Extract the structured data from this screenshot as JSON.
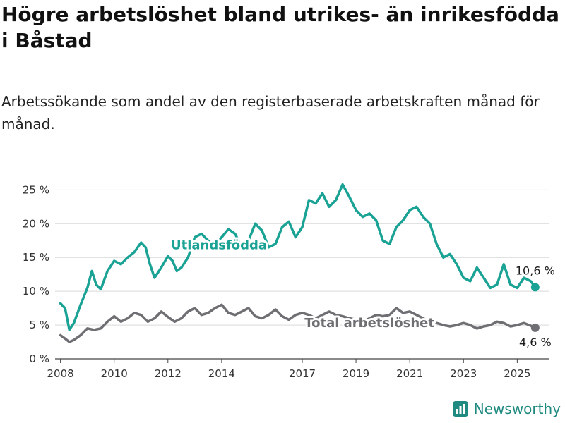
{
  "header": {
    "title": "Högre arbetslöshet bland utrikes- än inrikesfödda i Båstad",
    "subtitle": "Arbetssökande som andel av den registerbaserade arbetskraften månad för månad."
  },
  "branding": {
    "name": "Newsworthy",
    "icon": "bar-chart-logo-icon",
    "color": "#1f8a80"
  },
  "chart_data": {
    "type": "line",
    "title": "Högre arbetslöshet bland utrikes- än inrikesfödda i Båstad",
    "subtitle": "Arbetssökande som andel av den registerbaserade arbetskraften månad för månad.",
    "xlabel": "",
    "ylabel": "",
    "x_ticks": [
      "2008",
      "2010",
      "2012",
      "2014",
      "2017",
      "2019",
      "2021",
      "2023",
      "2025"
    ],
    "y_ticks": [
      "0 %",
      "5 %",
      "10 %",
      "15 %",
      "20 %",
      "25 %"
    ],
    "xlim": [
      2007.8,
      2026.2
    ],
    "ylim": [
      0,
      26.5
    ],
    "grid": "horizontal",
    "series": [
      {
        "name": "Utlandsfödda",
        "color": "#1aa295",
        "end_label": "10,6 %",
        "points": [
          [
            2008.0,
            8.2
          ],
          [
            2008.17,
            7.5
          ],
          [
            2008.33,
            4.3
          ],
          [
            2008.5,
            5.3
          ],
          [
            2008.75,
            8.0
          ],
          [
            2009.0,
            10.5
          ],
          [
            2009.17,
            13.0
          ],
          [
            2009.33,
            11.0
          ],
          [
            2009.5,
            10.3
          ],
          [
            2009.75,
            13.0
          ],
          [
            2010.0,
            14.5
          ],
          [
            2010.25,
            14.0
          ],
          [
            2010.5,
            15.0
          ],
          [
            2010.75,
            15.8
          ],
          [
            2011.0,
            17.2
          ],
          [
            2011.17,
            16.5
          ],
          [
            2011.33,
            14.0
          ],
          [
            2011.5,
            12.0
          ],
          [
            2011.75,
            13.5
          ],
          [
            2012.0,
            15.2
          ],
          [
            2012.17,
            14.5
          ],
          [
            2012.33,
            13.0
          ],
          [
            2012.5,
            13.5
          ],
          [
            2012.75,
            15.0
          ],
          [
            2013.0,
            18.0
          ],
          [
            2013.25,
            18.5
          ],
          [
            2013.5,
            17.5
          ],
          [
            2013.75,
            17.0
          ],
          [
            2014.0,
            18.0
          ],
          [
            2014.25,
            19.2
          ],
          [
            2014.5,
            18.5
          ],
          [
            2014.75,
            16.5
          ],
          [
            2015.0,
            17.5
          ],
          [
            2015.25,
            20.0
          ],
          [
            2015.5,
            19.0
          ],
          [
            2015.75,
            16.5
          ],
          [
            2016.0,
            17.0
          ],
          [
            2016.25,
            19.5
          ],
          [
            2016.5,
            20.3
          ],
          [
            2016.75,
            18.0
          ],
          [
            2017.0,
            19.5
          ],
          [
            2017.25,
            23.5
          ],
          [
            2017.5,
            23.0
          ],
          [
            2017.75,
            24.5
          ],
          [
            2018.0,
            22.5
          ],
          [
            2018.25,
            23.5
          ],
          [
            2018.5,
            25.8
          ],
          [
            2018.75,
            24.0
          ],
          [
            2019.0,
            22.0
          ],
          [
            2019.25,
            21.0
          ],
          [
            2019.5,
            21.5
          ],
          [
            2019.75,
            20.5
          ],
          [
            2020.0,
            17.5
          ],
          [
            2020.25,
            17.0
          ],
          [
            2020.5,
            19.5
          ],
          [
            2020.75,
            20.5
          ],
          [
            2021.0,
            22.0
          ],
          [
            2021.25,
            22.5
          ],
          [
            2021.5,
            21.0
          ],
          [
            2021.75,
            20.0
          ],
          [
            2022.0,
            17.0
          ],
          [
            2022.25,
            15.0
          ],
          [
            2022.5,
            15.5
          ],
          [
            2022.75,
            14.0
          ],
          [
            2023.0,
            12.0
          ],
          [
            2023.25,
            11.5
          ],
          [
            2023.5,
            13.5
          ],
          [
            2023.75,
            12.0
          ],
          [
            2024.0,
            10.5
          ],
          [
            2024.25,
            11.0
          ],
          [
            2024.5,
            14.0
          ],
          [
            2024.75,
            11.0
          ],
          [
            2025.0,
            10.5
          ],
          [
            2025.25,
            12.0
          ],
          [
            2025.5,
            11.5
          ],
          [
            2025.67,
            10.6
          ]
        ]
      },
      {
        "name": "Total arbetslöshet",
        "color": "#6e6e73",
        "end_label": "4,6 %",
        "points": [
          [
            2008.0,
            3.5
          ],
          [
            2008.17,
            3.0
          ],
          [
            2008.33,
            2.5
          ],
          [
            2008.5,
            2.8
          ],
          [
            2008.75,
            3.5
          ],
          [
            2009.0,
            4.5
          ],
          [
            2009.25,
            4.3
          ],
          [
            2009.5,
            4.5
          ],
          [
            2009.75,
            5.5
          ],
          [
            2010.0,
            6.3
          ],
          [
            2010.25,
            5.5
          ],
          [
            2010.5,
            6.0
          ],
          [
            2010.75,
            6.8
          ],
          [
            2011.0,
            6.5
          ],
          [
            2011.25,
            5.5
          ],
          [
            2011.5,
            6.0
          ],
          [
            2011.75,
            7.0
          ],
          [
            2012.0,
            6.2
          ],
          [
            2012.25,
            5.5
          ],
          [
            2012.5,
            6.0
          ],
          [
            2012.75,
            7.0
          ],
          [
            2013.0,
            7.5
          ],
          [
            2013.25,
            6.5
          ],
          [
            2013.5,
            6.8
          ],
          [
            2013.75,
            7.5
          ],
          [
            2014.0,
            8.0
          ],
          [
            2014.25,
            6.8
          ],
          [
            2014.5,
            6.5
          ],
          [
            2014.75,
            7.0
          ],
          [
            2015.0,
            7.5
          ],
          [
            2015.25,
            6.3
          ],
          [
            2015.5,
            6.0
          ],
          [
            2015.75,
            6.5
          ],
          [
            2016.0,
            7.3
          ],
          [
            2016.25,
            6.3
          ],
          [
            2016.5,
            5.8
          ],
          [
            2016.75,
            6.5
          ],
          [
            2017.0,
            6.8
          ],
          [
            2017.25,
            6.5
          ],
          [
            2017.5,
            6.0
          ],
          [
            2017.75,
            6.5
          ],
          [
            2018.0,
            7.0
          ],
          [
            2018.25,
            6.5
          ],
          [
            2018.5,
            6.3
          ],
          [
            2018.75,
            6.0
          ],
          [
            2019.0,
            5.8
          ],
          [
            2019.25,
            5.5
          ],
          [
            2019.5,
            6.0
          ],
          [
            2019.75,
            6.5
          ],
          [
            2020.0,
            6.3
          ],
          [
            2020.25,
            6.5
          ],
          [
            2020.5,
            7.5
          ],
          [
            2020.75,
            6.8
          ],
          [
            2021.0,
            7.0
          ],
          [
            2021.25,
            6.5
          ],
          [
            2021.5,
            6.0
          ],
          [
            2021.75,
            5.5
          ],
          [
            2022.0,
            5.3
          ],
          [
            2022.25,
            5.0
          ],
          [
            2022.5,
            4.8
          ],
          [
            2022.75,
            5.0
          ],
          [
            2023.0,
            5.3
          ],
          [
            2023.25,
            5.0
          ],
          [
            2023.5,
            4.5
          ],
          [
            2023.75,
            4.8
          ],
          [
            2024.0,
            5.0
          ],
          [
            2024.25,
            5.5
          ],
          [
            2024.5,
            5.3
          ],
          [
            2024.75,
            4.8
          ],
          [
            2025.0,
            5.0
          ],
          [
            2025.25,
            5.3
          ],
          [
            2025.5,
            4.9
          ],
          [
            2025.67,
            4.6
          ]
        ]
      }
    ]
  }
}
